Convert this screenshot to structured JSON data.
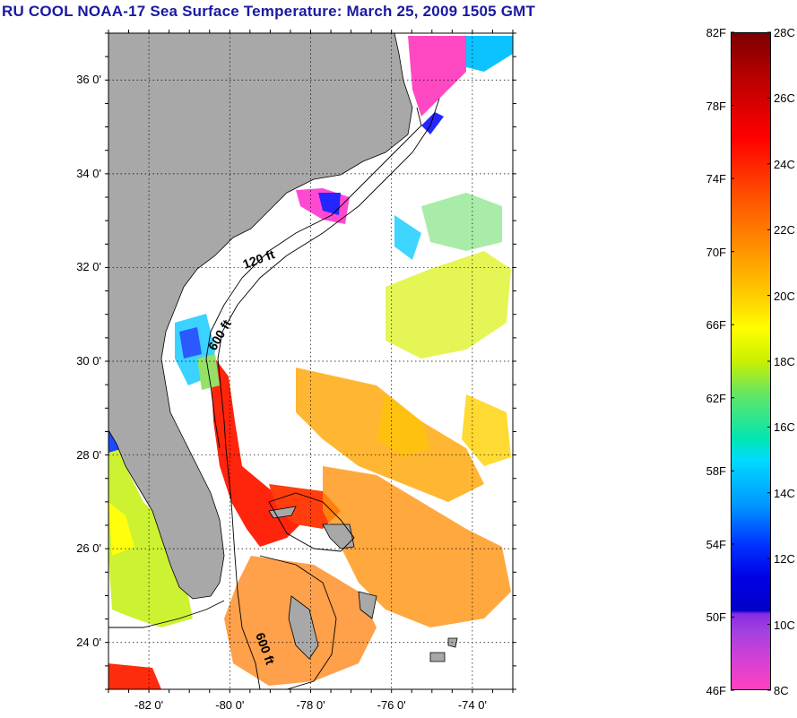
{
  "title": "RU COOL  NOAA-17  Sea Surface Temperature:  March 25, 2009 1505 GMT",
  "map": {
    "lat_labels": [
      "36 0'",
      "34 0'",
      "32 0'",
      "30 0'",
      "28 0'",
      "26 0'",
      "24 0'"
    ],
    "lat_values": [
      36,
      34,
      32,
      30,
      28,
      26,
      24
    ],
    "lon_labels": [
      "-82 0'",
      "-80 0'",
      "-78 0'",
      "-76 0'",
      "-74 0'"
    ],
    "lon_values": [
      -82,
      -80,
      -78,
      -76,
      -74
    ],
    "lat_range": [
      23.0,
      37.0
    ],
    "lon_range": [
      -83.0,
      -73.0
    ],
    "grid": "dotted",
    "isobath_labels": [
      "120 ft",
      "600 ft",
      "600 ft"
    ],
    "land_color": "#a8a8a8",
    "no_data_color": "#ffffff"
  },
  "colorbar": {
    "fahrenheit_labels": [
      "82F",
      "78F",
      "74F",
      "70F",
      "66F",
      "62F",
      "58F",
      "54F",
      "50F",
      "46F"
    ],
    "celsius_labels": [
      "28C",
      "26C",
      "24C",
      "22C",
      "20C",
      "18C",
      "16C",
      "14C",
      "12C",
      "10C",
      "8C"
    ],
    "range_c": [
      8,
      28
    ],
    "range_f": [
      46,
      82
    ]
  }
}
